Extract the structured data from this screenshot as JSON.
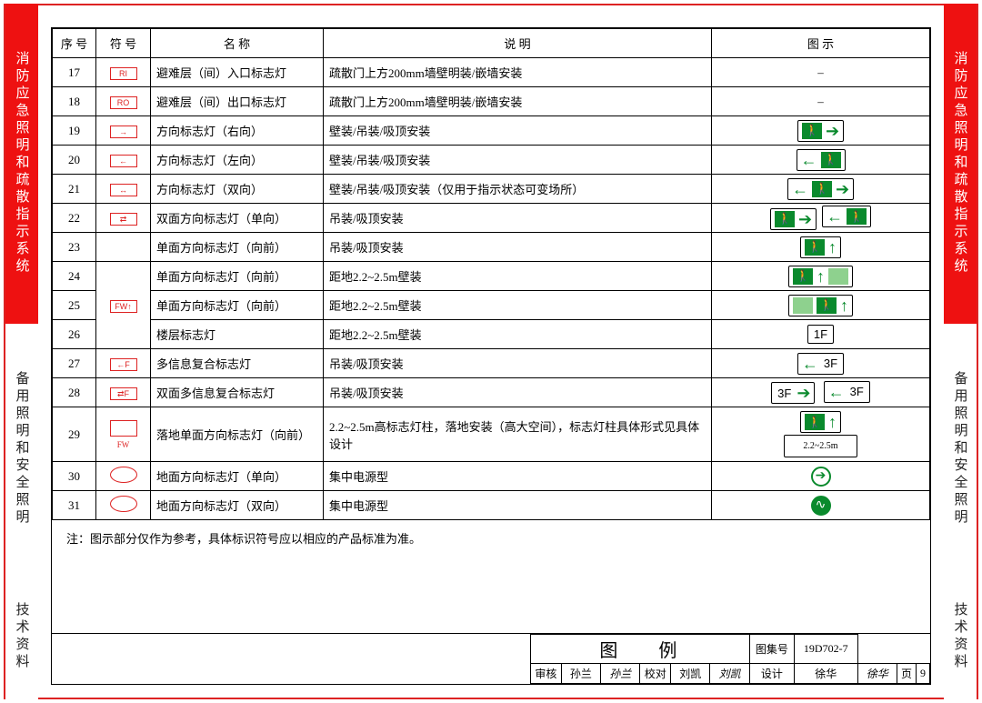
{
  "side_top": "消防应急照明和疏散指示系统",
  "side_mid": "备用照明和安全照明",
  "side_bot": "技术资料",
  "headers": {
    "seq": "序 号",
    "sym": "符 号",
    "name": "名 称",
    "desc": "说 明",
    "icon": "图 示"
  },
  "rows": [
    {
      "n": "17",
      "sym": "RI",
      "name": "避难层（间）入口标志灯",
      "desc": "疏散门上方200mm墙壁明装/嵌墙安装",
      "icon": "-",
      "symStyle": "box"
    },
    {
      "n": "18",
      "sym": "RO",
      "name": "避难层（间）出口标志灯",
      "desc": "疏散门上方200mm墙壁明装/嵌墙安装",
      "icon": "-",
      "symStyle": "box"
    },
    {
      "n": "19",
      "sym": "→",
      "name": "方向标志灯（右向）",
      "desc": "壁装/吊装/吸顶安装",
      "icon": "right",
      "symStyle": "box"
    },
    {
      "n": "20",
      "sym": "←",
      "name": "方向标志灯（左向）",
      "desc": "壁装/吊装/吸顶安装",
      "icon": "left",
      "symStyle": "box"
    },
    {
      "n": "21",
      "sym": "↔",
      "name": "方向标志灯（双向）",
      "desc": "壁装/吊装/吸顶安装（仅用于指示状态可变场所）",
      "icon": "double",
      "symStyle": "box"
    },
    {
      "n": "22",
      "sym": "⇄",
      "name": "双面方向标志灯（单向）",
      "desc": "吊装/吸顶安装",
      "icon": "dface",
      "symStyle": "box"
    },
    {
      "n": "23",
      "sym": "",
      "name": "单面方向标志灯（向前）",
      "desc": "吊装/吸顶安装",
      "icon": "up1",
      "symStyle": ""
    },
    {
      "n": "24",
      "sym": "FW↑",
      "name": "单面方向标志灯（向前）",
      "desc": "距地2.2~2.5m壁装",
      "icon": "up2",
      "symStyle": "box",
      "rowspan": 3
    },
    {
      "n": "25",
      "sym": "",
      "name": "单面方向标志灯（向前）",
      "desc": "距地2.2~2.5m壁装",
      "icon": "up3",
      "symStyle": ""
    },
    {
      "n": "26",
      "sym": "F",
      "name": "楼层标志灯",
      "desc": "距地2.2~2.5m壁装",
      "icon": "1F",
      "symStyle": "box"
    },
    {
      "n": "27",
      "sym": "←F",
      "name": "多信息复合标志灯",
      "desc": "吊装/吸顶安装",
      "icon": "3Fleft",
      "symStyle": "box"
    },
    {
      "n": "28",
      "sym": "⇄F",
      "name": "双面多信息复合标志灯",
      "desc": "吊装/吸顶安装",
      "icon": "3Fboth",
      "symStyle": "box"
    },
    {
      "n": "29",
      "sym": "□FW",
      "name": "落地单面方向标志灯（向前）",
      "desc": "2.2~2.5m高标志灯柱，落地安装（高大空间），标志灯柱具体形式见具体设计",
      "icon": "pole",
      "symStyle": "sq",
      "tall": true
    },
    {
      "n": "30",
      "sym": "↔",
      "name": "地面方向标志灯（单向）",
      "desc": "集中电源型",
      "icon": "circ1",
      "symStyle": "circ"
    },
    {
      "n": "31",
      "sym": "⇄",
      "name": "地面方向标志灯（双向）",
      "desc": "集中电源型",
      "icon": "circ2",
      "symStyle": "circ"
    }
  ],
  "note": "注：图示部分仅作为参考，具体标识符号应以相应的产品标准为准。",
  "titleblock": {
    "title": "图 例",
    "set_label": "图集号",
    "set_val": "19D702-7",
    "row": [
      {
        "l": "审核",
        "n": "孙兰",
        "s": "孙兰"
      },
      {
        "l": "校对",
        "n": "刘凯",
        "s": "刘凯"
      },
      {
        "l": "设计",
        "n": "徐华",
        "s": "徐华"
      }
    ],
    "page_label": "页",
    "page_val": "9"
  },
  "dim_text": "2.2~2.5m"
}
